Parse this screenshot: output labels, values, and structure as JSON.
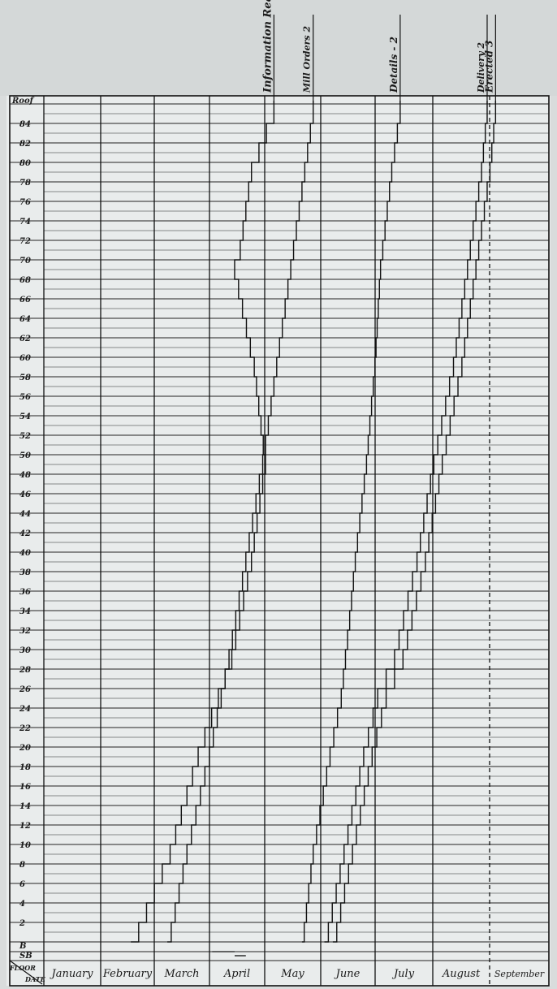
{
  "chart_data": {
    "type": "table",
    "title": "",
    "header_labels": [
      "Information Required",
      "Mill Orders 2",
      "Details - 2",
      "Delivery 2",
      "Erected 3"
    ],
    "top_row_label": "Roof",
    "corner_labels": {
      "top": "FLOOR",
      "bottom": "DATE"
    },
    "months": [
      "January",
      "February",
      "March",
      "April",
      "May",
      "June",
      "July",
      "August",
      "September"
    ],
    "floor_labels": [
      "84",
      "82",
      "80",
      "78",
      "76",
      "74",
      "72",
      "70",
      "68",
      "66",
      "64",
      "62",
      "60",
      "58",
      "56",
      "54",
      "52",
      "50",
      "48",
      "46",
      "44",
      "42",
      "40",
      "38",
      "36",
      "34",
      "32",
      "30",
      "28",
      "26",
      "24",
      "22",
      "20",
      "18",
      "16",
      "14",
      "12",
      "10",
      "8",
      "6",
      "4",
      "2",
      "B",
      "SB"
    ],
    "series": [
      {
        "name": "Information Required",
        "floors": [
          86,
          80,
          72,
          70,
          60,
          50,
          40,
          30,
          20,
          10,
          0
        ],
        "months": [
          4.1,
          3.7,
          3.5,
          3.4,
          3.75,
          3.95,
          3.7,
          3.35,
          2.75,
          2.25,
          1.55
        ]
      },
      {
        "name": "Mill Orders 2",
        "floors": [
          86,
          80,
          70,
          60,
          50,
          40,
          30,
          20,
          10,
          0
        ],
        "months": [
          4.8,
          4.65,
          4.4,
          4.15,
          3.9,
          3.6,
          3.3,
          2.95,
          2.55,
          2.2
        ]
      },
      {
        "name": "Details - 2",
        "floors": [
          86,
          80,
          70,
          60,
          50,
          40,
          34,
          26,
          20,
          10,
          0
        ],
        "months": [
          6.35,
          6.2,
          6.0,
          5.9,
          5.75,
          5.55,
          5.45,
          5.3,
          5.1,
          4.8,
          4.6
        ]
      },
      {
        "name": "Delivery 2",
        "floors": [
          86,
          80,
          70,
          60,
          50,
          40,
          30,
          26,
          20,
          10,
          0
        ],
        "months": [
          7.9,
          7.8,
          7.55,
          7.3,
          6.95,
          6.65,
          6.25,
          5.95,
          5.7,
          5.35,
          5.0
        ]
      },
      {
        "name": "Erected 3",
        "floors": [
          86,
          80,
          70,
          60,
          50,
          40,
          30,
          26,
          20,
          10,
          0
        ],
        "months": [
          8.05,
          7.95,
          7.7,
          7.45,
          7.1,
          6.8,
          6.4,
          6.1,
          5.85,
          5.5,
          5.15
        ]
      }
    ],
    "sub_basement_steps": [
      [
        3.0,
        3.4
      ],
      [
        3.4,
        3.6
      ]
    ],
    "xlabel": "",
    "ylabel": "",
    "grid": true
  }
}
